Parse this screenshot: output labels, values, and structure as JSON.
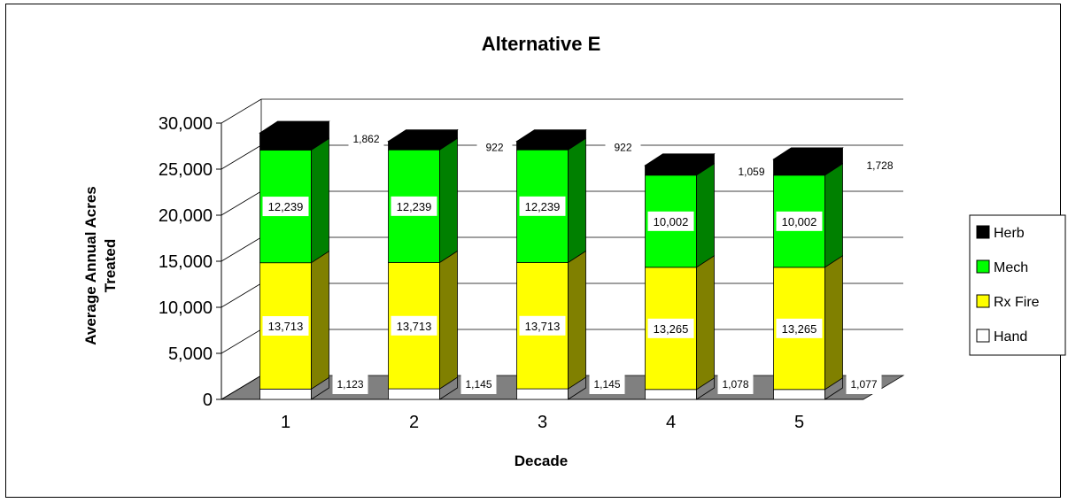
{
  "chart_data": {
    "type": "bar",
    "stacked": true,
    "three_d": true,
    "title": "Alternative E",
    "xlabel": "Decade",
    "ylabel": [
      "Average Annual Acres",
      "Treated"
    ],
    "ylim": [
      0,
      30000
    ],
    "yticks": [
      "0",
      "5,000",
      "10,000",
      "15,000",
      "20,000",
      "25,000",
      "30,000"
    ],
    "ytick_values": [
      0,
      5000,
      10000,
      15000,
      20000,
      25000,
      30000
    ],
    "categories": [
      "1",
      "2",
      "3",
      "4",
      "5"
    ],
    "series": [
      {
        "name": "Hand",
        "color": "#ffffff",
        "values": [
          1123,
          1145,
          1145,
          1078,
          1077
        ],
        "labels": [
          "1,123",
          "1,145",
          "1,145",
          "1,078",
          "1,077"
        ]
      },
      {
        "name": "Rx Fire",
        "color": "#ffff00",
        "values": [
          13713,
          13713,
          13713,
          13265,
          13265
        ],
        "labels": [
          "13,713",
          "13,713",
          "13,713",
          "13,265",
          "13,265"
        ]
      },
      {
        "name": "Mech",
        "color": "#00ff00",
        "values": [
          12239,
          12239,
          12239,
          10002,
          10002
        ],
        "labels": [
          "12,239",
          "12,239",
          "12,239",
          "10,002",
          "10,002"
        ]
      },
      {
        "name": "Herb",
        "color": "#000000",
        "values": [
          1862,
          922,
          922,
          1059,
          1728
        ],
        "labels": [
          "1,862",
          "922",
          "922",
          "1,059",
          "1,728"
        ]
      }
    ],
    "legend_position": "right",
    "legend_order": [
      "Herb",
      "Mech",
      "Rx Fire",
      "Hand"
    ],
    "grid": true,
    "floor_color": "#808080"
  }
}
